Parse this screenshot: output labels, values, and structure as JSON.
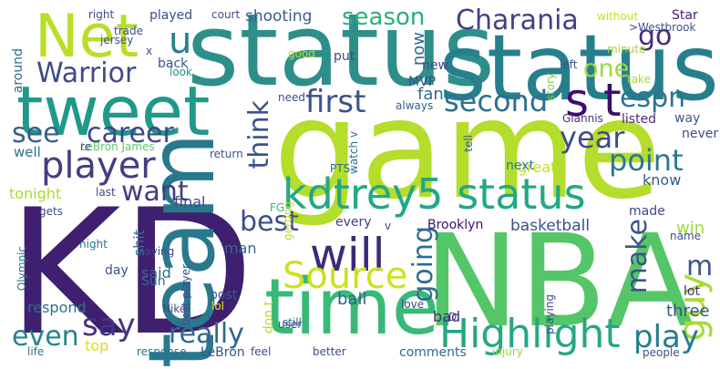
{
  "words": [
    {
      "text": "KD",
      "color": "#3f1f6f"
    },
    {
      "text": "game",
      "color": "#b5dd2b"
    },
    {
      "text": "NBA",
      "color": "#55c667"
    },
    {
      "text": "team",
      "color": "#2a788e"
    },
    {
      "text": "status",
      "color": "#2e8f8a"
    },
    {
      "text": "status",
      "color": "#277f8e"
    },
    {
      "text": "tweet",
      "color": "#1f998a"
    },
    {
      "text": "Net",
      "color": "#b8de29"
    },
    {
      "text": "time",
      "color": "#38b977"
    },
    {
      "text": "kdtrey5 status",
      "color": "#22a884"
    },
    {
      "text": "Highlight",
      "color": "#26a784"
    },
    {
      "text": "s t",
      "color": "#3b0f70"
    },
    {
      "text": "will",
      "color": "#3b2a7a"
    },
    {
      "text": "player",
      "color": "#433e85"
    },
    {
      "text": "Source",
      "color": "#cde11d"
    },
    {
      "text": "second",
      "color": "#2c728e"
    },
    {
      "text": "first",
      "color": "#3b528b"
    },
    {
      "text": "Warrior",
      "color": "#3e4a89"
    },
    {
      "text": "go",
      "color": "#482878"
    },
    {
      "text": "say",
      "color": "#46327e"
    },
    {
      "text": "really",
      "color": "#31688e"
    },
    {
      "text": "guy",
      "color": "#a8db34"
    },
    {
      "text": "Charania",
      "color": "#424186"
    },
    {
      "text": "one",
      "color": "#9bd93c"
    },
    {
      "text": "point",
      "color": "#2a788e"
    },
    {
      "text": "year",
      "color": "#3e4c8a"
    },
    {
      "text": "going",
      "color": "#2e6e8e"
    },
    {
      "text": "career",
      "color": "#404688"
    },
    {
      "text": "espn",
      "color": "#2c738e"
    },
    {
      "text": "play",
      "color": "#287c8e"
    },
    {
      "text": "season",
      "color": "#29af7f"
    },
    {
      "text": "best",
      "color": "#3d4e8a"
    },
    {
      "text": "make",
      "color": "#3a548c"
    },
    {
      "text": "want",
      "color": "#433d84"
    },
    {
      "text": "think",
      "color": "#3b528b"
    },
    {
      "text": "see",
      "color": "#355f8d"
    },
    {
      "text": "u",
      "color": "#277f8e"
    },
    {
      "text": "even",
      "color": "#25848e"
    },
    {
      "text": "m",
      "color": "#39568c"
    },
    {
      "text": "shooting",
      "color": "#365c8d"
    },
    {
      "text": "fan",
      "color": "#2f6c8e"
    },
    {
      "text": "now",
      "color": "#2f6b8e"
    },
    {
      "text": "basketball",
      "color": "#3c4f8a"
    },
    {
      "text": "played",
      "color": "#3d4e8a"
    },
    {
      "text": "back",
      "color": "#3b528b"
    },
    {
      "text": "Star",
      "color": "#482173"
    },
    {
      "text": "MVP",
      "color": "#3e4a89"
    },
    {
      "text": "new",
      "color": "#3f4889"
    },
    {
      "text": "respond",
      "color": "#2e6f8e"
    },
    {
      "text": "ball",
      "color": "#365d8d"
    },
    {
      "text": "three",
      "color": "#3b528b"
    },
    {
      "text": "every",
      "color": "#424086"
    },
    {
      "text": "know",
      "color": "#355e8d"
    },
    {
      "text": "way",
      "color": "#355f8d"
    },
    {
      "text": "win",
      "color": "#9bd93c"
    },
    {
      "text": "listed",
      "color": "#472c7a"
    },
    {
      "text": "final",
      "color": "#3f4788"
    },
    {
      "text": "great",
      "color": "#c2df23"
    },
    {
      "text": "tonight",
      "color": "#aadc32"
    },
    {
      "text": "don t",
      "color": "#b5de2b"
    },
    {
      "text": "said",
      "color": "#31688e"
    },
    {
      "text": "man",
      "color": "#2f6b8e"
    },
    {
      "text": "shit",
      "color": "#2e6e8e"
    },
    {
      "text": "Giannis",
      "color": "#472d7b"
    },
    {
      "text": "Brooklyn",
      "color": "#3b0f70"
    },
    {
      "text": "bad",
      "color": "#482878"
    },
    {
      "text": "top",
      "color": "#d8e219"
    },
    {
      "text": "day",
      "color": "#3b528b"
    },
    {
      "text": "post",
      "color": "#355f8d"
    },
    {
      "text": "Sun",
      "color": "#31688e"
    },
    {
      "text": "comments",
      "color": "#31688e"
    },
    {
      "text": "well",
      "color": "#2c728e"
    },
    {
      "text": "LeBron",
      "color": "#3b528b"
    },
    {
      "text": "around",
      "color": "#2c728e"
    },
    {
      "text": "next",
      "color": "#2a788e"
    },
    {
      "text": "made",
      "color": "#404688"
    },
    {
      "text": "never",
      "color": "#3f4889"
    },
    {
      "text": "lot",
      "color": "#472d7b"
    },
    {
      "text": "LeBron James",
      "color": "#5ec962"
    },
    {
      "text": ">Westbrook",
      "color": "#3b528b"
    },
    {
      "text": "minute",
      "color": "#9bd93c"
    },
    {
      "text": "always",
      "color": "#355f8d"
    },
    {
      "text": "FG",
      "color": "#35b779"
    },
    {
      "text": "PTS",
      "color": "#31688e"
    },
    {
      "text": "watch v",
      "color": "#2e6f8e"
    },
    {
      "text": "jersey",
      "color": "#3b528b"
    },
    {
      "text": "trade",
      "color": "#3e4a89"
    },
    {
      "text": "right",
      "color": "#3f4889"
    },
    {
      "text": "court",
      "color": "#3e4c8a"
    },
    {
      "text": "without",
      "color": "#c0df25"
    },
    {
      "text": "put",
      "color": "#3e4a89"
    },
    {
      "text": "look",
      "color": "#21918c"
    },
    {
      "text": "left",
      "color": "#3e4c8a"
    },
    {
      "text": "take",
      "color": "#a0da39"
    },
    {
      "text": "need",
      "color": "#3b528b"
    },
    {
      "text": "story",
      "color": "#7ad151"
    },
    {
      "text": "good",
      "color": "#b8de29"
    },
    {
      "text": "re",
      "color": "#3e4c8a"
    },
    {
      "text": "return",
      "color": "#3b528b"
    },
    {
      "text": "tell",
      "color": "#34608d"
    },
    {
      "text": "last",
      "color": "#3e4a89"
    },
    {
      "text": "night",
      "color": "#2c728e"
    },
    {
      "text": "saying",
      "color": "#3e4a89"
    },
    {
      "text": "best player",
      "color": "#3e4a89"
    },
    {
      "text": "Nike",
      "color": "#3e4a89"
    },
    {
      "text": "lol",
      "color": "#d8e219"
    },
    {
      "text": "still",
      "color": "#2c728e"
    },
    {
      "text": "user",
      "color": "#3e4a89"
    },
    {
      "text": "response",
      "color": "#2c728e"
    },
    {
      "text": "feel",
      "color": "#3e4a89"
    },
    {
      "text": "better",
      "color": "#3e4c8a"
    },
    {
      "text": "love",
      "color": "#3e4c8a"
    },
    {
      "text": "D",
      "color": "#3e4a89"
    },
    {
      "text": "injury",
      "color": "#9bd93c"
    },
    {
      "text": "people",
      "color": "#3e4c8a"
    },
    {
      "text": "playing",
      "color": "#3e4c8a"
    },
    {
      "text": "name",
      "color": "#3e4c8a"
    },
    {
      "text": "life",
      "color": "#2c728e"
    },
    {
      "text": "getting",
      "color": "#b8de29"
    },
    {
      "text": "gets",
      "color": "#3e4a89"
    },
    {
      "text": "Olympic",
      "color": "#2a788e"
    },
    {
      "text": "v",
      "color": "#3e4a89"
    },
    {
      "text": "x",
      "color": "#3e4a89"
    }
  ]
}
